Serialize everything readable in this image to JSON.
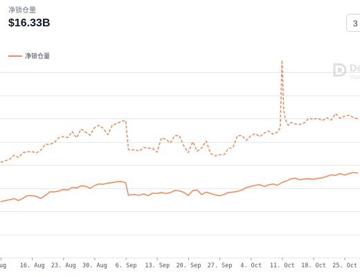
{
  "header": {
    "metric_label": "净锁仓量",
    "metric_value": "$16.33B",
    "range_button": "3"
  },
  "watermark": {
    "name": "De",
    "sub": "Your",
    "icon": "defillama-logo-icon"
  },
  "colors": {
    "series_color": "#f08a5d",
    "grid_color": "#e5e7eb"
  },
  "chart_data": {
    "type": "line",
    "title": "",
    "xlabel": "",
    "ylabel": "",
    "x_tick_labels": [
      "Aug",
      "16. Aug",
      "23. Aug",
      "30. Aug",
      "6. Sep",
      "13. Sep",
      "20. Sep",
      "27. Sep",
      "4. Oct",
      "11. Oct",
      "18. Oct",
      "25. Oct"
    ],
    "x_range": [
      0,
      100
    ],
    "x_tick_positions": [
      0,
      7,
      14,
      21,
      28,
      35,
      42,
      49,
      56,
      63,
      70,
      77
    ],
    "y_range": [
      0,
      100
    ],
    "grid": "horizontal",
    "legend": [
      {
        "name": "净锁仓量",
        "position": "top-left"
      }
    ],
    "series": [
      {
        "name": "净锁仓量",
        "style": "solid",
        "x": [
          0,
          2,
          3,
          4,
          5,
          6,
          7,
          8,
          9,
          10,
          11,
          12,
          13,
          14,
          15,
          16,
          17,
          18,
          19,
          20,
          21,
          22,
          23,
          24,
          25,
          26,
          27,
          28,
          28.6,
          29,
          30,
          31,
          32,
          33,
          34,
          35,
          36,
          37,
          38,
          39,
          40,
          41,
          42,
          43,
          44,
          45,
          46,
          47,
          48,
          49,
          50,
          51,
          52,
          53,
          54,
          55,
          56,
          57,
          58,
          59,
          60,
          61,
          62,
          63,
          64,
          65,
          66,
          67,
          68,
          69,
          70,
          71,
          72,
          73,
          74,
          75,
          76,
          77,
          78,
          79,
          80
        ],
        "values": [
          30.2,
          31.2,
          31.8,
          30.8,
          32.0,
          33.4,
          33.4,
          33.0,
          31.9,
          33.5,
          35.4,
          35.4,
          35.9,
          36.7,
          36.4,
          37.8,
          37.5,
          38.7,
          38.5,
          37.3,
          38.8,
          39.7,
          39.5,
          40.2,
          40.4,
          40.9,
          41.0,
          40.3,
          33.6,
          33.8,
          34.0,
          33.6,
          34.3,
          33.4,
          34.7,
          34.6,
          35.1,
          34.5,
          35.0,
          36.2,
          36.0,
          35.2,
          33.5,
          36.1,
          36.4,
          34.0,
          35.3,
          34.6,
          33.8,
          33.4,
          34.0,
          35.1,
          35.3,
          35.7,
          36.4,
          37.8,
          38.3,
          39.0,
          39.3,
          38.4,
          39.2,
          39.7,
          39.0,
          40.5,
          41.3,
          42.5,
          42.8,
          41.9,
          42.4,
          42.5,
          42.2,
          42.7,
          43.0,
          43.8,
          44.6,
          44.3,
          45.3,
          44.5,
          45.3,
          45.9,
          45.5
        ]
      },
      {
        "name": "",
        "style": "dashed",
        "x": [
          0,
          2,
          3,
          4,
          5,
          6,
          7,
          8,
          9,
          10,
          11,
          12,
          13,
          14,
          15,
          16,
          17,
          18,
          19,
          20,
          21,
          22,
          23,
          24,
          25,
          26,
          27,
          28,
          28.6,
          29,
          30,
          31,
          32,
          33,
          34,
          35,
          36,
          37,
          38,
          39,
          40,
          41,
          42,
          43,
          44,
          45,
          46,
          47,
          48,
          49,
          50,
          51,
          52,
          53,
          54,
          55,
          56,
          57,
          58,
          59,
          60,
          61,
          62,
          62.6,
          63,
          63.4,
          63.8,
          64.4,
          65,
          66,
          67,
          68,
          69,
          70,
          71,
          72,
          73,
          74,
          75,
          76,
          77,
          78,
          79,
          80
        ],
        "values": [
          51.3,
          53.0,
          55.2,
          54.0,
          56.6,
          57.0,
          57.1,
          56.4,
          57.9,
          61.1,
          61.0,
          62.0,
          64.6,
          65.2,
          64.7,
          67.9,
          64.5,
          69.3,
          67.6,
          66.0,
          70.0,
          71.3,
          69.6,
          66.3,
          71.5,
          72.2,
          73.5,
          73.8,
          58.4,
          57.8,
          58.2,
          57.4,
          59.3,
          59.0,
          58.9,
          56.8,
          64.5,
          63.7,
          61.8,
          65.8,
          65.7,
          60.3,
          56.6,
          62.4,
          57.3,
          59.1,
          62.8,
          56.1,
          54.9,
          55.4,
          55.4,
          58.8,
          59.2,
          65.7,
          65.8,
          63.2,
          65.6,
          66.8,
          65.2,
          67.1,
          68.2,
          66.5,
          67.7,
          70.1,
          106.4,
          79.2,
          74.3,
          71.3,
          72.8,
          72.0,
          71.7,
          72.6,
          75.1,
          74.5,
          75.1,
          73.8,
          75.3,
          74.1,
          77.6,
          75.1,
          76.3,
          76.7,
          75.5,
          74.8
        ]
      }
    ]
  }
}
